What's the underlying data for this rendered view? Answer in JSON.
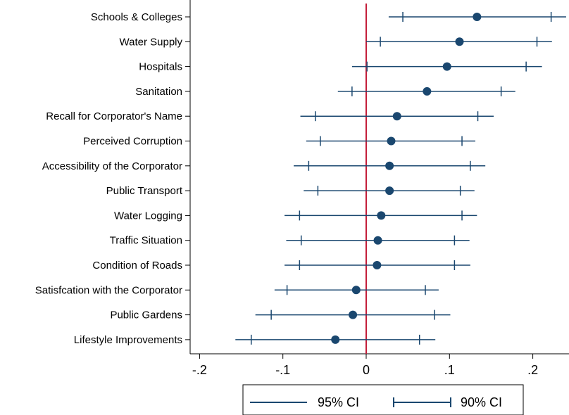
{
  "chart_data": {
    "type": "scatter",
    "subtype": "coefficient-plot-horizontal",
    "title": "",
    "xlabel": "",
    "ylabel": "",
    "xlim": [
      -0.235,
      0.245
    ],
    "x_ticks": [
      -0.2,
      -0.1,
      0,
      0.1,
      0.2
    ],
    "x_tick_labels": [
      "-.2",
      "-.1",
      "0",
      ".1",
      ".2"
    ],
    "reference_line": {
      "x": 0,
      "color": "#c41e3a"
    },
    "series_color": "#1a476f",
    "grid": false,
    "categories": [
      "Schools & Colleges",
      "Water Supply",
      "Hospitals",
      "Sanitation",
      "Recall for Corporator's Name",
      "Perceived Corruption",
      "Accessibility of the Corporator",
      "Public Transport",
      "Water Logging",
      "Traffic Situation",
      "Condition of Roads",
      "Satisfcation with the Corporator",
      "Public Gardens",
      "Lifestyle Improvements"
    ],
    "estimates": [
      0.133,
      0.112,
      0.097,
      0.073,
      0.037,
      0.03,
      0.028,
      0.028,
      0.018,
      0.014,
      0.013,
      -0.012,
      -0.016,
      -0.037
    ],
    "ci95_low": [
      0.027,
      0.0,
      -0.017,
      -0.034,
      -0.079,
      -0.072,
      -0.087,
      -0.075,
      -0.098,
      -0.096,
      -0.098,
      -0.11,
      -0.133,
      -0.157
    ],
    "ci95_high": [
      0.24,
      0.223,
      0.211,
      0.179,
      0.153,
      0.131,
      0.143,
      0.13,
      0.133,
      0.124,
      0.125,
      0.087,
      0.101,
      0.083
    ],
    "ci90_low": [
      0.044,
      0.017,
      0.001,
      -0.017,
      -0.061,
      -0.055,
      -0.069,
      -0.058,
      -0.08,
      -0.078,
      -0.08,
      -0.095,
      -0.114,
      -0.138
    ],
    "ci90_high": [
      0.222,
      0.205,
      0.192,
      0.162,
      0.134,
      0.115,
      0.125,
      0.113,
      0.115,
      0.106,
      0.106,
      0.071,
      0.082,
      0.064
    ],
    "legend": {
      "position": "bottom",
      "items": [
        "95% CI",
        "90% CI"
      ]
    }
  }
}
